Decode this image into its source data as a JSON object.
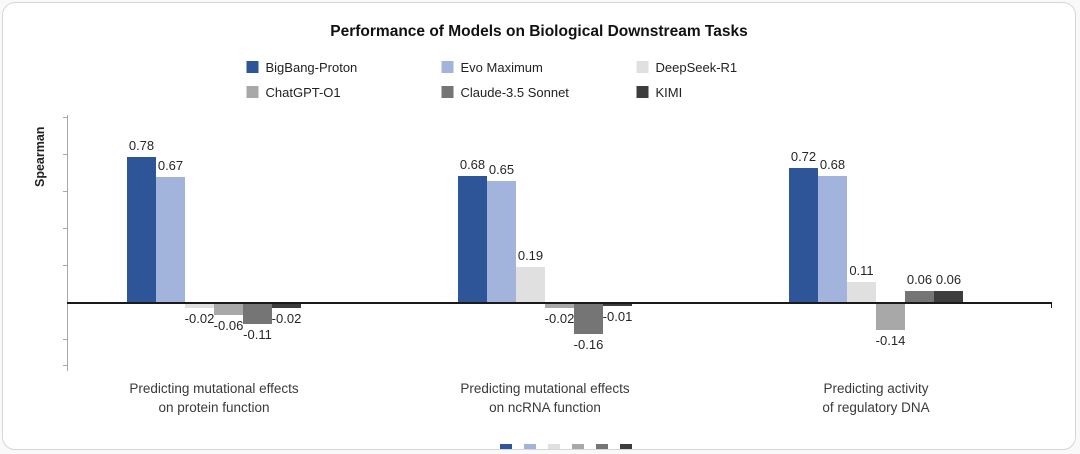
{
  "chart_data": {
    "type": "bar",
    "title": "Performance of Models on Biological Downstream Tasks",
    "ylabel": "Spearman",
    "ylim": [
      -0.2,
      0.85
    ],
    "grid": false,
    "legend_position": "top-center, two rows of three",
    "categories": [
      "Predicting mutational effects\non protein function",
      "Predicting mutational effects\non ncRNA function",
      "Predicting activity\nof regulatory DNA"
    ],
    "series": [
      {
        "name": "BigBang-Proton",
        "color": "#2e5597",
        "values": [
          0.78,
          0.68,
          0.72
        ]
      },
      {
        "name": "Evo Maximum",
        "color": "#a2b4db",
        "values": [
          0.67,
          0.65,
          0.68
        ]
      },
      {
        "name": "DeepSeek-R1",
        "color": "#e0e0e0",
        "values": [
          -0.02,
          0.19,
          0.11
        ]
      },
      {
        "name": "ChatGPT-O1",
        "color": "#a8a8a8",
        "values": [
          -0.06,
          -0.02,
          -0.14
        ]
      },
      {
        "name": "Claude-3.5 Sonnet",
        "color": "#757575",
        "values": [
          -0.11,
          -0.16,
          0.06
        ]
      },
      {
        "name": "KIMI",
        "color": "#3d3d3d",
        "values": [
          -0.02,
          -0.01,
          0.06
        ]
      }
    ]
  }
}
